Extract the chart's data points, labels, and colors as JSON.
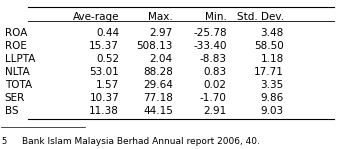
{
  "columns": [
    "",
    "Ave-rage",
    "Max.",
    "Min.",
    "Std. Dev."
  ],
  "rows": [
    [
      "ROA",
      "0.44",
      "2.97",
      "-25.78",
      "3.48"
    ],
    [
      "ROE",
      "15.37",
      "508.13",
      "-33.40",
      "58.50"
    ],
    [
      "LLPTA",
      "0.52",
      "2.04",
      "-8.83",
      "1.18"
    ],
    [
      "NLTA",
      "53.01",
      "88.28",
      "0.83",
      "17.71"
    ],
    [
      "TOTA",
      "1.57",
      "29.64",
      "0.02",
      "3.35"
    ],
    [
      "SER",
      "10.37",
      "77.18",
      "-1.70",
      "9.86"
    ],
    [
      "BS",
      "11.38",
      "44.15",
      "2.91",
      "9.03"
    ]
  ],
  "footnote": "Bank Islam Malaysia Berhad Annual report 2006, 40.",
  "footnote_marker": "5",
  "background_color": "#ffffff",
  "font_size": 7.5,
  "header_font_size": 7.5,
  "footnote_font_size": 6.5
}
